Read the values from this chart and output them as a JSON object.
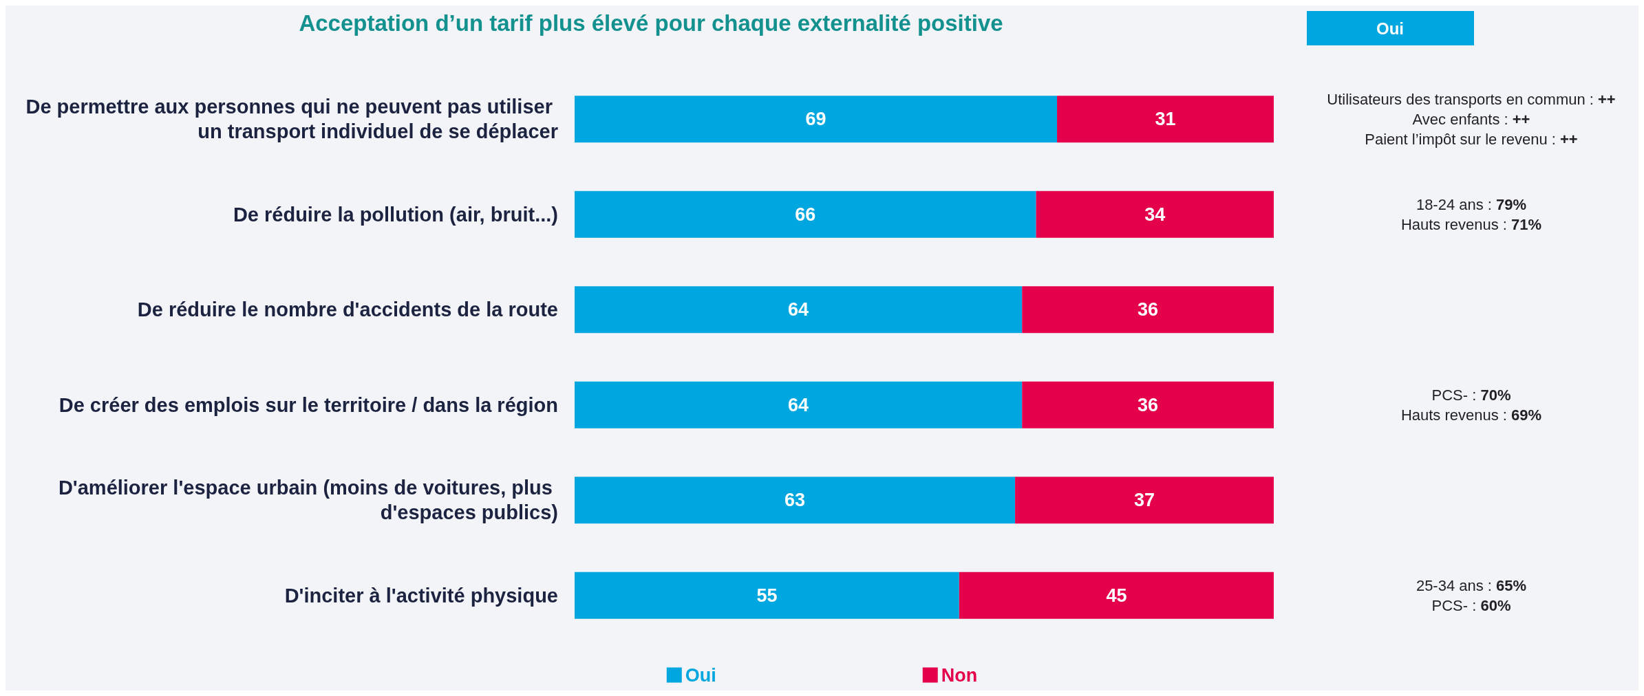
{
  "chart_data": {
    "type": "bar",
    "orientation": "horizontal",
    "stacked": true,
    "title": "Acceptation d’un tarif plus élevé pour chaque externalité positive",
    "categories": [
      "De permettre aux personnes qui ne peuvent pas utiliser un transport individuel de se déplacer",
      "De réduire la pollution (air, bruit...)",
      "De réduire le nombre d'accidents de la route",
      "De créer des emplois sur le territoire / dans la région",
      "D'améliorer l'espace urbain (moins de voitures, plus d'espaces publics)",
      "D'inciter à l'activité physique"
    ],
    "series": [
      {
        "name": "Oui",
        "color": "#00a6e0",
        "values": [
          69,
          66,
          64,
          64,
          63,
          55
        ]
      },
      {
        "name": "Non",
        "color": "#e4004b",
        "values": [
          31,
          34,
          36,
          36,
          37,
          45
        ]
      }
    ],
    "xlim": [
      0,
      100
    ],
    "data_labels": true,
    "legend": "bottom",
    "annotations": [
      "Oui",
      "Utilisateurs des transports en commun : ++\nAvec enfants : ++\nPaient l’impôt sur le revenu : ++",
      "18-24 ans : 79%\nHauts revenus : 71%",
      "PCS- : 70%\nHauts revenus : 69%",
      "25-34 ans : 65%\nPCS- : 60%"
    ]
  }
}
